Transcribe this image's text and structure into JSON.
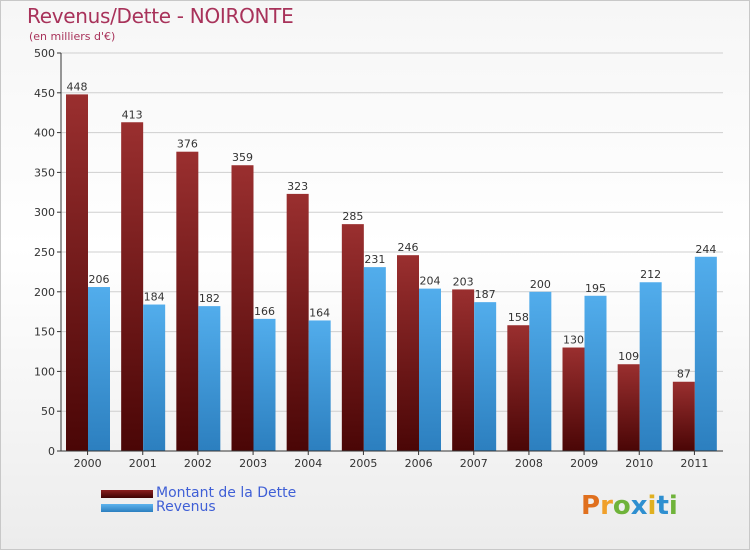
{
  "header": {
    "title": "Revenus/Dette - NOIRONTE",
    "subtitle": "(en milliers d'€)"
  },
  "legend": {
    "items": [
      {
        "label": "Montant de la Dette",
        "color": "#5e0a0a"
      },
      {
        "label": "Revenus",
        "color": "#3f97da"
      }
    ]
  },
  "logo": {
    "text": "Proxiti",
    "letters": [
      {
        "ch": "P",
        "color": "#e0701e"
      },
      {
        "ch": "r",
        "color": "#f0a02a"
      },
      {
        "ch": "o",
        "color": "#6fb33a"
      },
      {
        "ch": "x",
        "color": "#2e8fd0"
      },
      {
        "ch": "i",
        "color": "#e0b020"
      },
      {
        "ch": "t",
        "color": "#2e8fd0"
      },
      {
        "ch": "i",
        "color": "#6fb33a"
      }
    ]
  },
  "chart_data": {
    "type": "bar",
    "title": "Revenus/Dette - NOIRONTE",
    "ylabel": "(en milliers d'€)",
    "xlabel": "",
    "ylim": [
      0,
      500
    ],
    "yticks": [
      0,
      50,
      100,
      150,
      200,
      250,
      300,
      350,
      400,
      450,
      500
    ],
    "categories": [
      "2000",
      "2001",
      "2002",
      "2003",
      "2004",
      "2005",
      "2006",
      "2007",
      "2008",
      "2009",
      "2010",
      "2011"
    ],
    "series": [
      {
        "name": "Montant de la Dette",
        "color_top": "#9a2f2f",
        "color_bottom": "#4a0606",
        "values": [
          448,
          413,
          376,
          359,
          323,
          285,
          246,
          203,
          158,
          130,
          109,
          87
        ]
      },
      {
        "name": "Revenus",
        "color_top": "#52adec",
        "color_bottom": "#2c7fbf",
        "values": [
          206,
          184,
          182,
          166,
          164,
          231,
          204,
          187,
          200,
          195,
          212,
          244
        ]
      }
    ],
    "grid": true,
    "legend_position": "bottom-left"
  }
}
